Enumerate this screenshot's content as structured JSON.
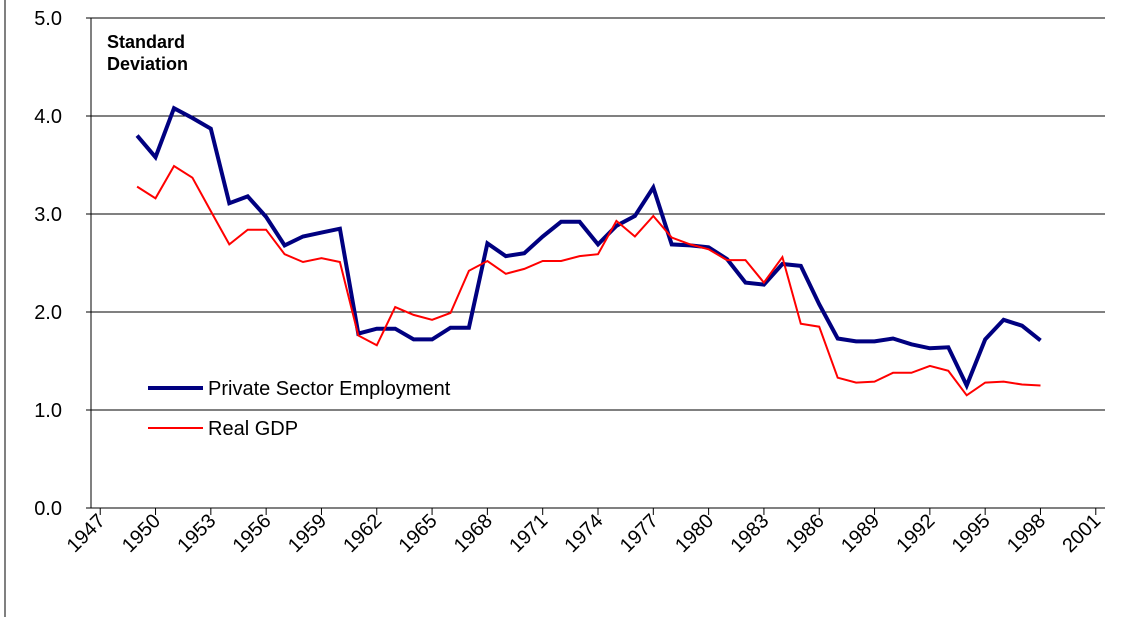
{
  "chart_data": {
    "type": "line",
    "y_axis_label": "Standard\nDeviation",
    "x": [
      1949,
      1950,
      1951,
      1952,
      1953,
      1954,
      1955,
      1956,
      1957,
      1958,
      1959,
      1960,
      1961,
      1962,
      1963,
      1964,
      1965,
      1966,
      1967,
      1968,
      1969,
      1970,
      1971,
      1972,
      1973,
      1974,
      1975,
      1976,
      1977,
      1978,
      1979,
      1980,
      1981,
      1982,
      1983,
      1984,
      1985,
      1986,
      1987,
      1988,
      1989,
      1990,
      1991,
      1992,
      1993,
      1994,
      1995,
      1996,
      1997,
      1998
    ],
    "series": [
      {
        "name": "Private Sector Employment",
        "color": "#000080",
        "values": [
          3.8,
          3.58,
          4.08,
          3.98,
          3.87,
          3.11,
          3.18,
          2.97,
          2.68,
          2.77,
          2.81,
          2.85,
          1.78,
          1.83,
          1.83,
          1.72,
          1.72,
          1.84,
          1.84,
          2.7,
          2.57,
          2.6,
          2.77,
          2.92,
          2.92,
          2.69,
          2.88,
          2.98,
          3.27,
          2.69,
          2.68,
          2.66,
          2.54,
          2.3,
          2.28,
          2.49,
          2.47,
          2.08,
          1.73,
          1.7,
          1.7,
          1.73,
          1.67,
          1.63,
          1.64,
          1.25,
          1.72,
          1.92,
          1.86,
          1.71
        ]
      },
      {
        "name": "Real GDP",
        "color": "#ff0000",
        "values": [
          3.28,
          3.16,
          3.49,
          3.37,
          3.03,
          2.69,
          2.84,
          2.84,
          2.59,
          2.51,
          2.55,
          2.51,
          1.76,
          1.66,
          2.05,
          1.97,
          1.92,
          1.99,
          2.42,
          2.52,
          2.39,
          2.44,
          2.52,
          2.52,
          2.57,
          2.59,
          2.93,
          2.77,
          2.98,
          2.76,
          2.69,
          2.64,
          2.53,
          2.53,
          2.3,
          2.56,
          1.88,
          1.85,
          1.33,
          1.28,
          1.29,
          1.38,
          1.38,
          1.45,
          1.4,
          1.15,
          1.28,
          1.29,
          1.26,
          1.25
        ]
      }
    ],
    "xlim": [
      1946.5,
      2001.5
    ],
    "xticks": [
      1947,
      1950,
      1953,
      1956,
      1959,
      1962,
      1965,
      1968,
      1971,
      1974,
      1977,
      1980,
      1983,
      1986,
      1989,
      1992,
      1995,
      1998,
      2001
    ],
    "ylim": [
      0,
      5
    ],
    "yticks": [
      {
        "value": 0,
        "label": "0.0"
      },
      {
        "value": 1,
        "label": "1.0"
      },
      {
        "value": 2,
        "label": "2.0"
      },
      {
        "value": 3,
        "label": "3.0"
      },
      {
        "value": 4,
        "label": "4.0"
      },
      {
        "value": 5,
        "label": "5.0"
      }
    ],
    "grid": true,
    "legend": "lower-left"
  }
}
